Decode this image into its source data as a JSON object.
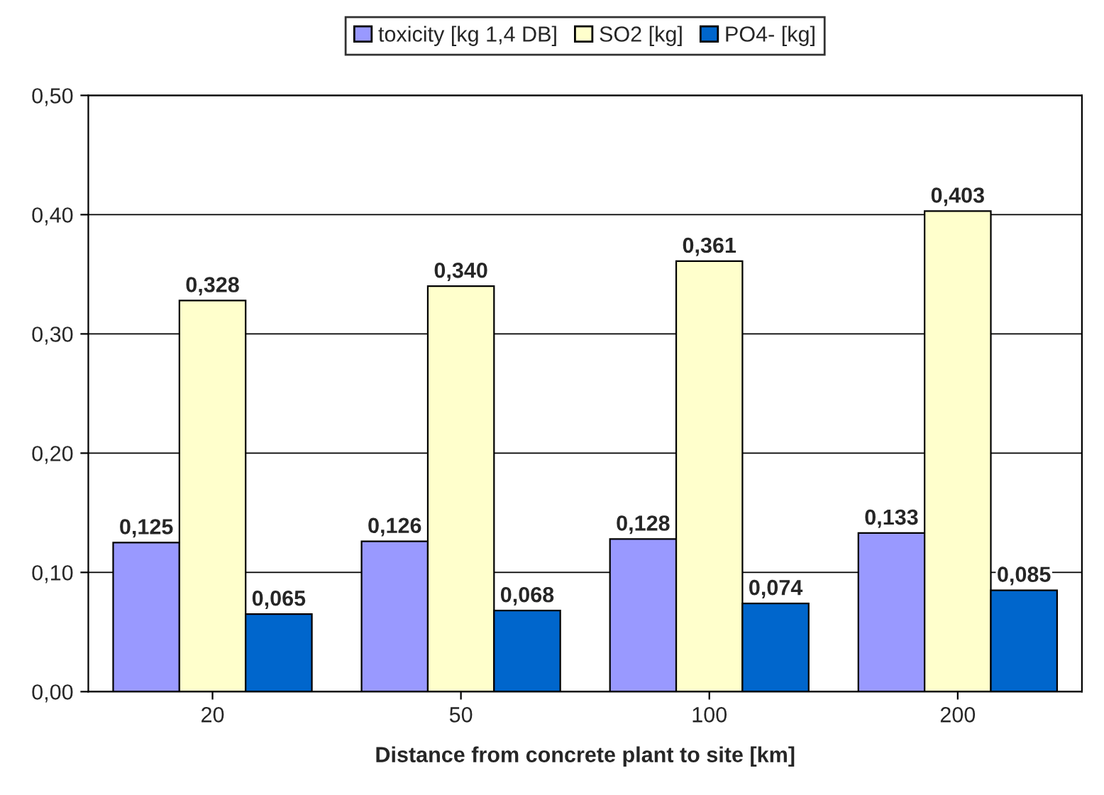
{
  "chart_data": {
    "type": "bar",
    "xlabel": "Distance from concrete plant to site [km]",
    "categories": [
      "20",
      "50",
      "100",
      "200"
    ],
    "series": [
      {
        "name": "toxicity [kg 1,4 DB]",
        "color": "#9999ff",
        "values": [
          0.125,
          0.126,
          0.128,
          0.133
        ],
        "value_labels": [
          "0,125",
          "0,126",
          "0,128",
          "0,133"
        ]
      },
      {
        "name": "SO2 [kg]",
        "color": "#ffffcc",
        "values": [
          0.328,
          0.34,
          0.361,
          0.403
        ],
        "value_labels": [
          "0,328",
          "0,340",
          "0,361",
          "0,403"
        ]
      },
      {
        "name": "PO4- [kg]",
        "color": "#0066cc",
        "values": [
          0.065,
          0.068,
          0.074,
          0.085
        ],
        "value_labels": [
          "0,065",
          "0,068",
          "0,074",
          "0,085"
        ]
      }
    ],
    "ylim": [
      0,
      0.5
    ],
    "yticks": [
      {
        "value": 0,
        "label": "0,00"
      },
      {
        "value": 0.1,
        "label": "0,10"
      },
      {
        "value": 0.2,
        "label": "0,20"
      },
      {
        "value": 0.3,
        "label": "0,30"
      },
      {
        "value": 0.4,
        "label": "0,40"
      },
      {
        "value": 0.5,
        "label": "0,50"
      }
    ],
    "grid": "y",
    "legend": "top"
  }
}
